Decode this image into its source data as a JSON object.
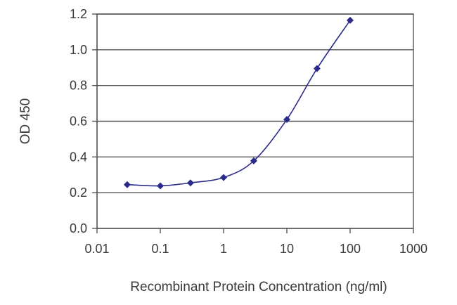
{
  "chart_data": {
    "type": "line",
    "xlabel": "Recombinant Protein Concentration (ng/ml)",
    "ylabel": "OD 450",
    "x_scale": "log",
    "xlim": [
      0.01,
      1000
    ],
    "ylim": [
      0,
      1.2
    ],
    "x_ticks": [
      0.01,
      0.1,
      1,
      10,
      100,
      1000
    ],
    "x_tick_labels": [
      "0.01",
      "0.1",
      "1",
      "10",
      "100",
      "1000"
    ],
    "y_ticks": [
      0,
      0.2,
      0.4,
      0.6,
      0.8,
      1.0,
      1.2
    ],
    "y_tick_labels": [
      "0.0",
      "0.2",
      "0.4",
      "0.6",
      "0.8",
      "1.0",
      "1.2"
    ],
    "grid": "horizontal",
    "legend": "none",
    "series": [
      {
        "x": [
          0.03,
          0.1,
          0.3,
          1,
          3,
          10,
          30,
          100
        ],
        "y": [
          0.245,
          0.238,
          0.255,
          0.285,
          0.378,
          0.61,
          0.895,
          1.165
        ],
        "color": "#2b2b8c",
        "marker": "diamond"
      }
    ]
  }
}
